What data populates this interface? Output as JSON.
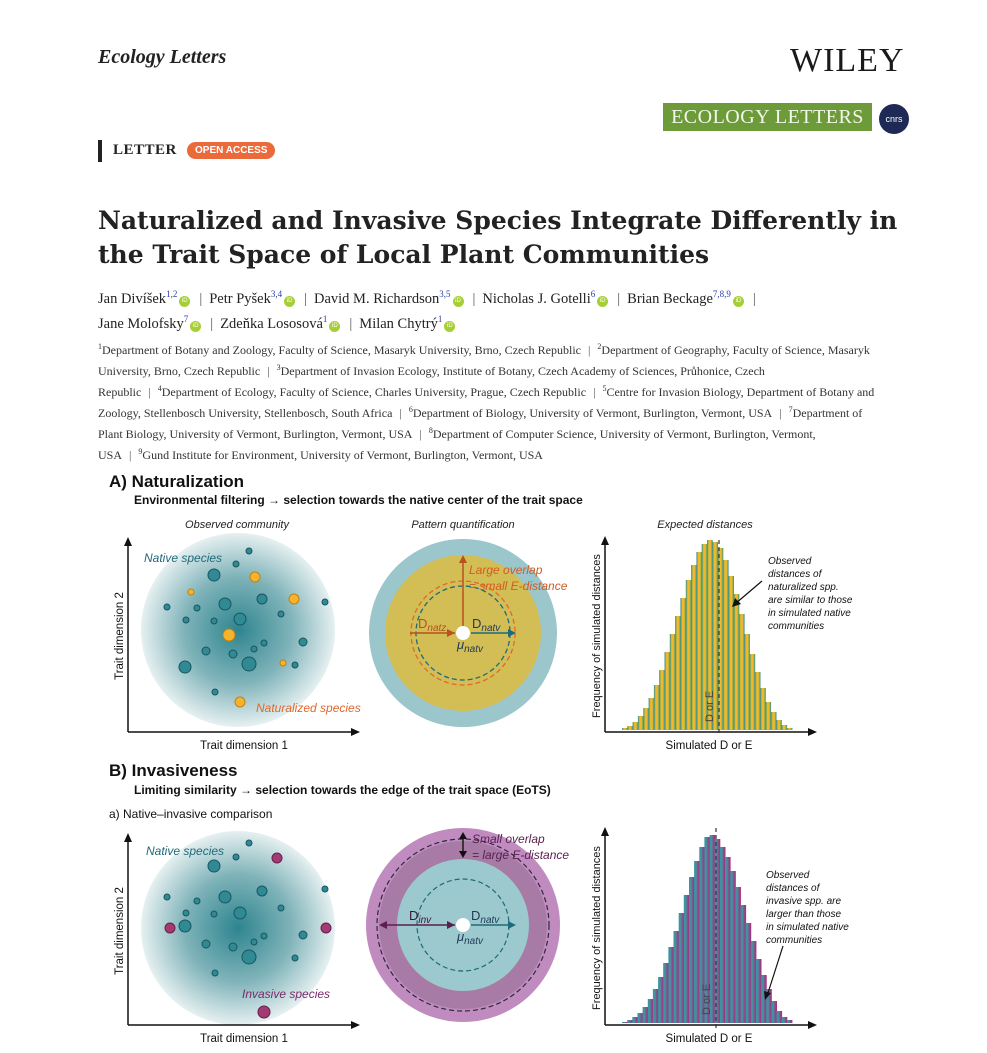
{
  "header": {
    "journal": "Ecology Letters",
    "publisher": "WILEY",
    "banner": "ECOLOGY LETTERS",
    "cnrs": "cnrs"
  },
  "article": {
    "type": "LETTER",
    "access": "OPEN ACCESS",
    "title": "Naturalized and Invasive Species Integrate Differently in the Trait Space of Local Plant Communities"
  },
  "authors": [
    {
      "name": "Jan Divíšek",
      "aff": "1,2"
    },
    {
      "name": "Petr Pyšek",
      "aff": "3,4"
    },
    {
      "name": "David M. Richardson",
      "aff": "3,5"
    },
    {
      "name": "Nicholas J. Gotelli",
      "aff": "6"
    },
    {
      "name": "Brian Beckage",
      "aff": "7,8,9"
    },
    {
      "name": "Jane Molofsky",
      "aff": "7"
    },
    {
      "name": "Zdeňka Lososová",
      "aff": "1"
    },
    {
      "name": "Milan Chytrý",
      "aff": "1"
    }
  ],
  "affiliations": [
    {
      "n": "1",
      "text": "Department of Botany and Zoology, Faculty of Science, Masaryk University, Brno, Czech Republic"
    },
    {
      "n": "2",
      "text": "Department of Geography, Faculty of Science, Masaryk University, Brno, Czech Republic"
    },
    {
      "n": "3",
      "text": "Department of Invasion Ecology, Institute of Botany, Czech Academy of Sciences, Průhonice, Czech Republic"
    },
    {
      "n": "4",
      "text": "Department of Ecology, Faculty of Science, Charles University, Prague, Czech Republic"
    },
    {
      "n": "5",
      "text": "Centre for Invasion Biology, Department of Botany and Zoology, Stellenbosch University, Stellenbosch, South Africa"
    },
    {
      "n": "6",
      "text": "Department of Biology, University of Vermont, Burlington, Vermont, USA"
    },
    {
      "n": "7",
      "text": "Department of Plant Biology, University of Vermont, Burlington, Vermont, USA"
    },
    {
      "n": "8",
      "text": "Department of Computer Science, University of Vermont, Burlington, Vermont, USA"
    },
    {
      "n": "9",
      "text": "Gund Institute for Environment, University of Vermont, Burlington, Vermont, USA"
    }
  ],
  "figure": {
    "a": {
      "heading": "A) Naturalization",
      "subheading": "Environmental filtering → selection towards the native center of the trait space",
      "panel1_title": "Observed community",
      "panel2_title": "Pattern quantification",
      "panel3_title": "Expected distances",
      "native_label": "Native species",
      "focal_label": "Naturalized species",
      "xaxis": "Trait dimension 1",
      "yaxis": "Trait dimension 2",
      "overlap_line1": "Large overlap",
      "overlap_line2": "= small E-distance",
      "d_focal": "D",
      "d_focal_sub": "natz",
      "d_native": "D",
      "d_native_sub": "natv",
      "mu": "μ",
      "mu_sub": "natv",
      "hist_ylabel": "Frequency of simulated distances",
      "hist_xlabel": "Simulated D or E",
      "hist_marker": "D or E",
      "note": [
        "Observed",
        "distances of",
        "naturalized spp.",
        "are similar to those",
        "in simulated native",
        "communities"
      ]
    },
    "b": {
      "heading": "B) Invasiveness",
      "subheading": "Limiting similarity → selection towards the edge of the trait space (EoTS)",
      "subpanel": "a) Native–invasive comparison",
      "native_label": "Native species",
      "focal_label": "Invasive species",
      "xaxis": "Trait dimension 1",
      "yaxis": "Trait dimension 2",
      "overlap_line1": "Small overlap",
      "overlap_line2": "= large E-distance",
      "d_focal": "D",
      "d_focal_sub": "inv",
      "d_native": "D",
      "d_native_sub": "natv",
      "mu": "μ",
      "mu_sub": "natv",
      "hist_ylabel": "Frequency of simulated distances",
      "hist_xlabel": "Simulated D or E",
      "hist_marker": "D or E",
      "note": [
        "Observed",
        "distances of",
        "invasive spp. are",
        "larger than those",
        "in simulated native",
        "communities"
      ]
    }
  },
  "colors": {
    "teal": "#2f7f8c",
    "teal_dark": "#1f6a78",
    "gold": "#f4b72b",
    "orange_text": "#e0692a",
    "magenta": "#a0336f",
    "ring_teal": "#8fc0c8",
    "ring_olive": "#d4bf56",
    "ring_purple": "#b47ab0"
  }
}
